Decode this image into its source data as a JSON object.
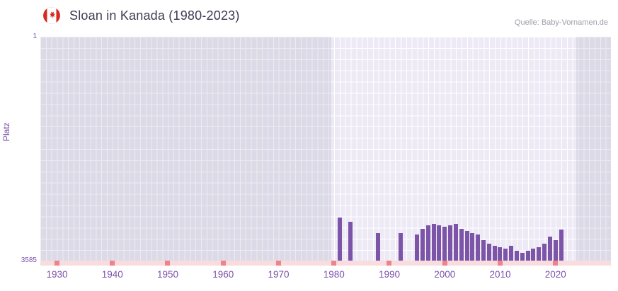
{
  "header": {
    "title": "Sloan in Kanada (1980-2023)",
    "source": "Quelle: Baby-Vornamen.de"
  },
  "y_axis": {
    "title": "Platz",
    "top_label": "1",
    "bottom_label": "3585"
  },
  "chart_data": {
    "type": "bar",
    "title": "Sloan in Kanada (1980-2023)",
    "xlabel": "",
    "ylabel": "Platz",
    "y_axis_inverted": true,
    "ylim": [
      1,
      3585
    ],
    "x_range": [
      1927,
      2030
    ],
    "x_ticks": [
      1930,
      1940,
      1950,
      1960,
      1970,
      1980,
      1990,
      2000,
      2010,
      2020
    ],
    "highlight_range": [
      1980,
      2023
    ],
    "grid": true,
    "legend": "none",
    "series": [
      {
        "name": "Platz",
        "points": [
          {
            "year": 1981,
            "rank": 2890
          },
          {
            "year": 1983,
            "rank": 2950
          },
          {
            "year": 1988,
            "rank": 3130
          },
          {
            "year": 1992,
            "rank": 3130
          },
          {
            "year": 1995,
            "rank": 3160
          },
          {
            "year": 1996,
            "rank": 3070
          },
          {
            "year": 1997,
            "rank": 3010
          },
          {
            "year": 1998,
            "rank": 2990
          },
          {
            "year": 1999,
            "rank": 3010
          },
          {
            "year": 2000,
            "rank": 3030
          },
          {
            "year": 2001,
            "rank": 3010
          },
          {
            "year": 2002,
            "rank": 2990
          },
          {
            "year": 2003,
            "rank": 3070
          },
          {
            "year": 2004,
            "rank": 3100
          },
          {
            "year": 2005,
            "rank": 3130
          },
          {
            "year": 2006,
            "rank": 3160
          },
          {
            "year": 2007,
            "rank": 3250
          },
          {
            "year": 2008,
            "rank": 3300
          },
          {
            "year": 2009,
            "rank": 3340
          },
          {
            "year": 2010,
            "rank": 3360
          },
          {
            "year": 2011,
            "rank": 3380
          },
          {
            "year": 2012,
            "rank": 3340
          },
          {
            "year": 2013,
            "rank": 3420
          },
          {
            "year": 2014,
            "rank": 3450
          },
          {
            "year": 2015,
            "rank": 3420
          },
          {
            "year": 2016,
            "rank": 3380
          },
          {
            "year": 2017,
            "rank": 3360
          },
          {
            "year": 2018,
            "rank": 3300
          },
          {
            "year": 2019,
            "rank": 3190
          },
          {
            "year": 2020,
            "rank": 3250
          },
          {
            "year": 2021,
            "rank": 3080
          }
        ]
      }
    ],
    "no_data_tick_years": [
      1930,
      1940,
      1950,
      1960,
      1970,
      1980,
      1990,
      2000,
      2010,
      2020
    ],
    "colors": {
      "bar": "#7d55a8",
      "plot_bg": "#edeaf6",
      "outside_range_overlay": "rgba(138,138,160,0.16)",
      "grid": "#ffffff",
      "axis_text": "#7b52ab",
      "band": "#f9dcdd",
      "band_tick": "#ee838b",
      "title": "#3c3b52",
      "source": "#9c9ca6",
      "flag_red": "#d52b1e"
    }
  }
}
